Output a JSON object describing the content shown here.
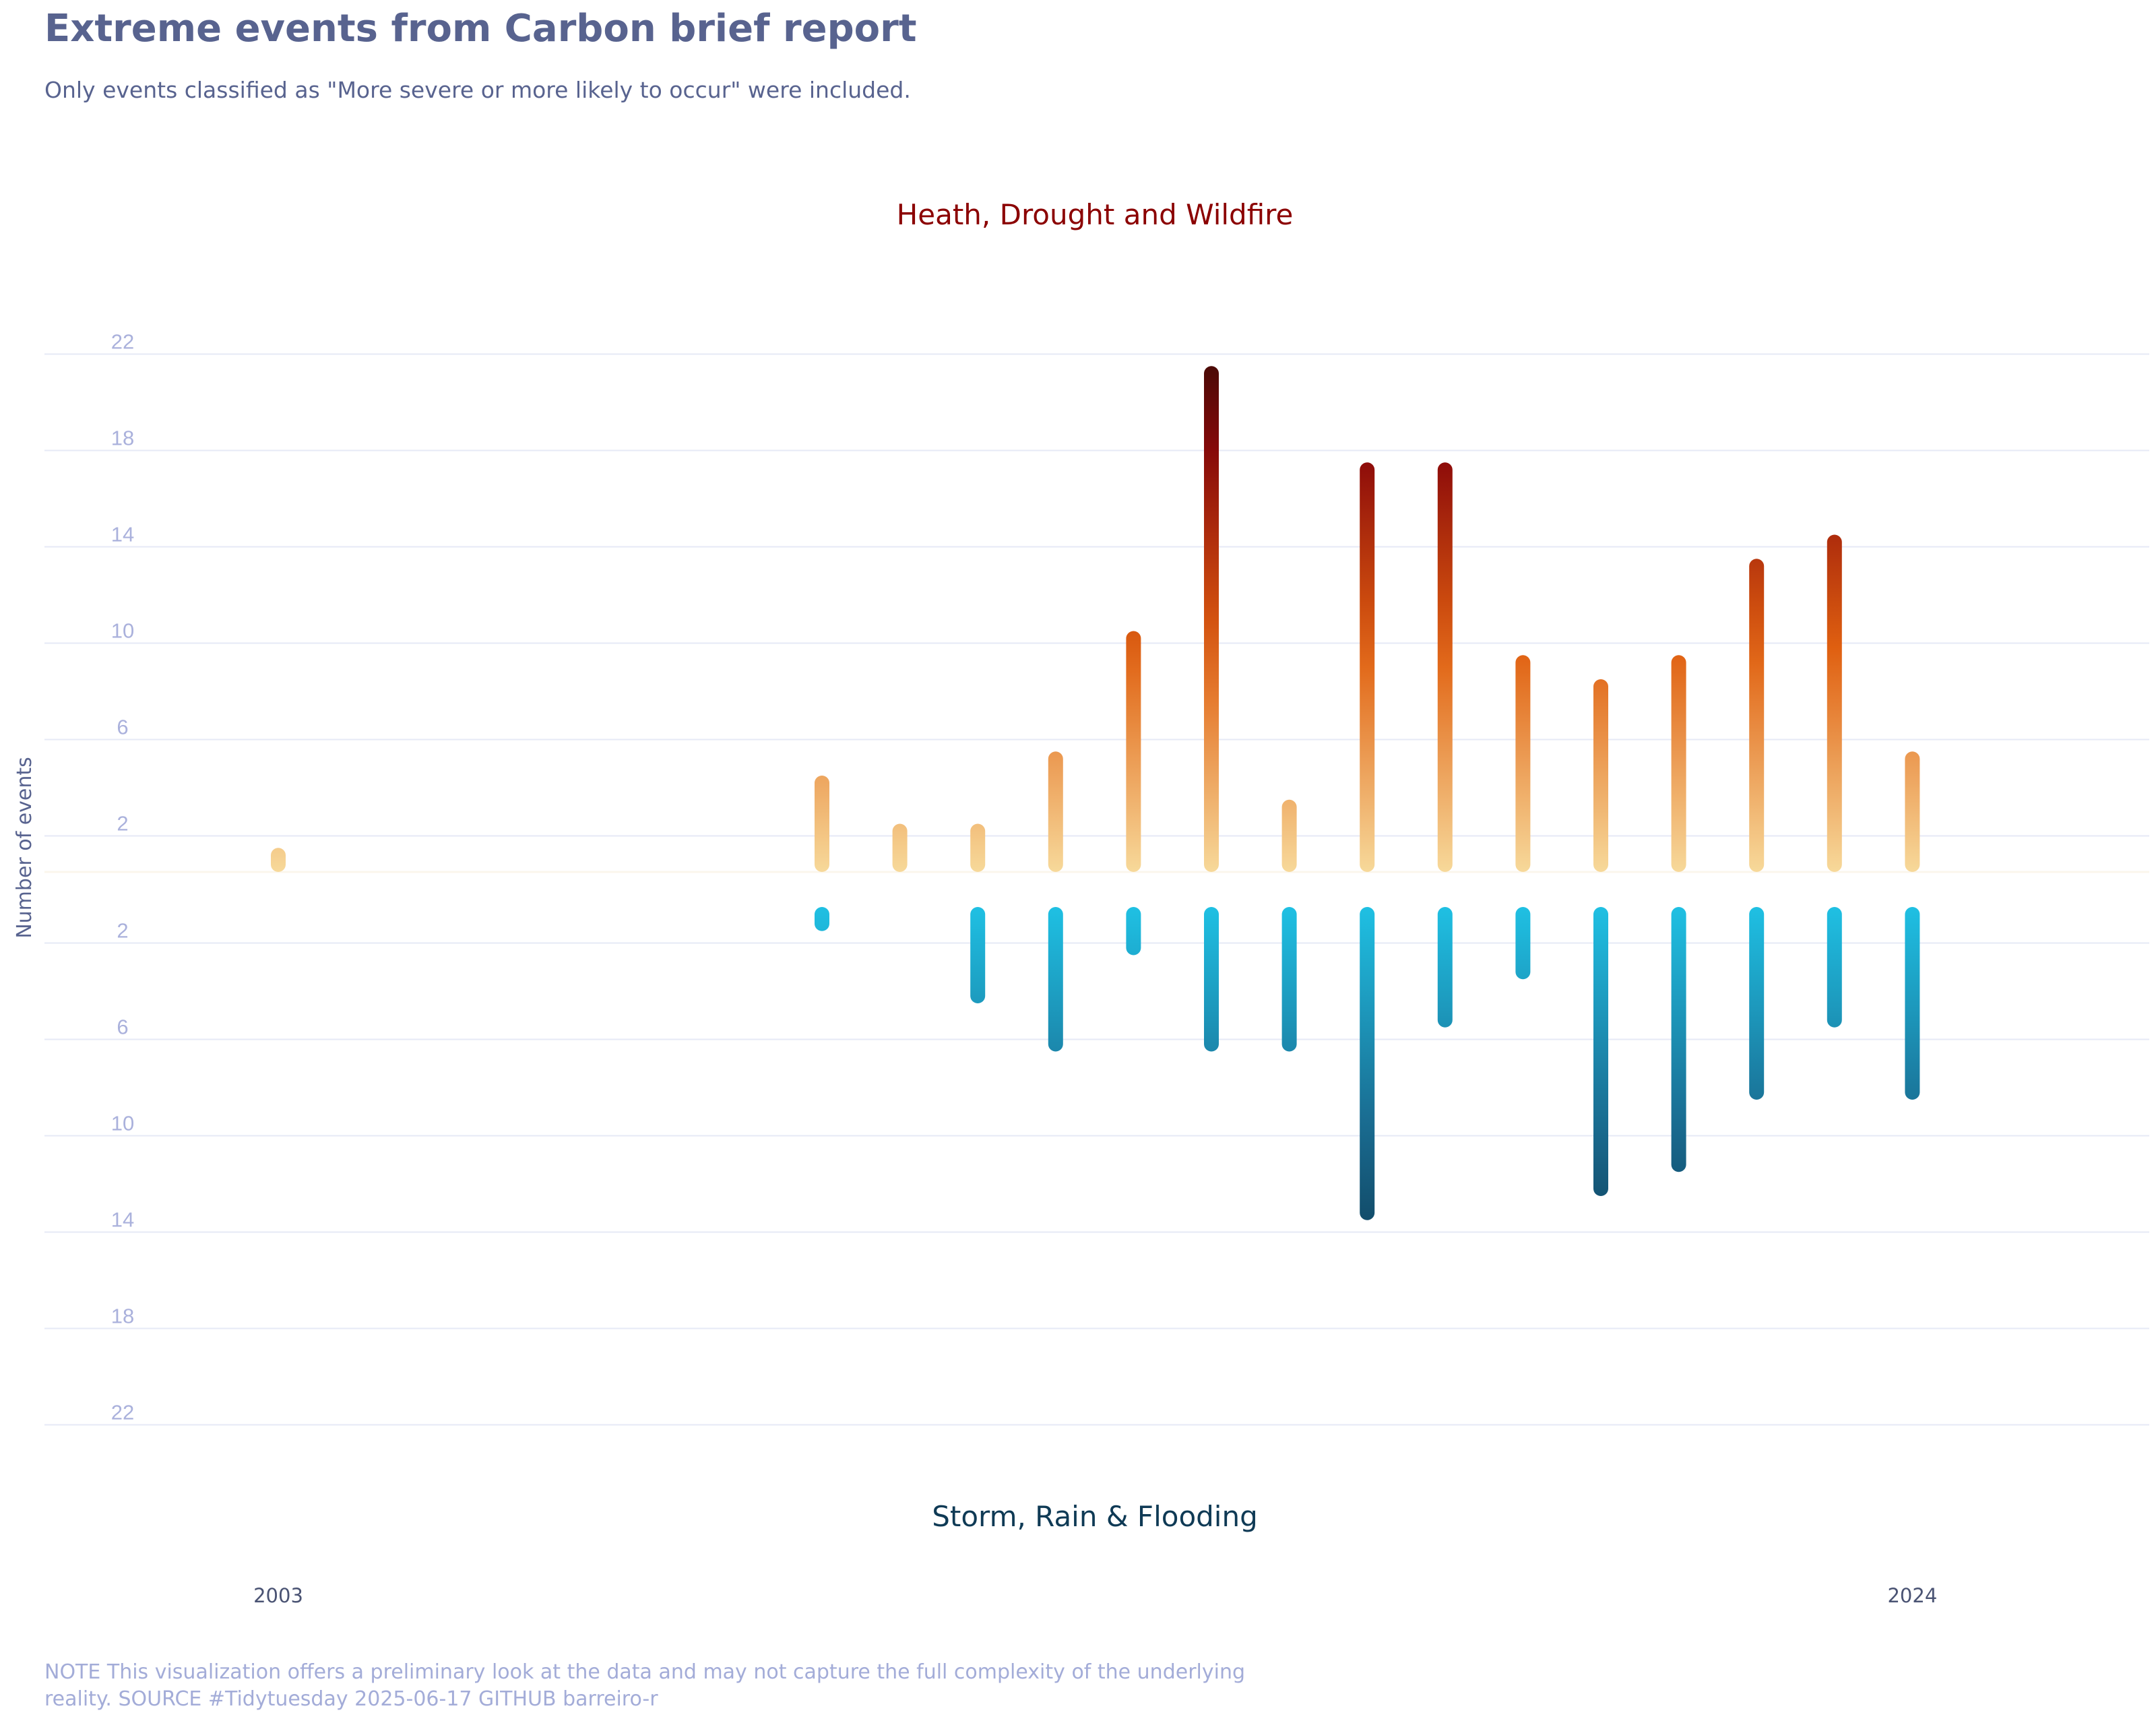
{
  "title": "Extreme events from Carbon brief report",
  "subtitle": "Only events classified as \"More severe or more likely to occur\" were included.",
  "caption": "NOTE This visualization offers a preliminary look at the data and may not capture the full complexity of the underlying reality. SOURCE #Tidytuesday 2025-06-17 GITHUB barreiro-r",
  "chart_data": {
    "type": "bar",
    "orientation": "diverging",
    "ylabel": "Number of events",
    "top_label": "Heath, Drought and Wildfire",
    "bottom_label": "Storm, Rain & Flooding",
    "x_tick_labels": [
      "2003",
      "2024"
    ],
    "y_ticks": [
      2,
      6,
      10,
      14,
      18,
      22
    ],
    "y_tick_labels": [
      "2",
      "6",
      "10",
      "14",
      "18",
      "22"
    ],
    "ylim": [
      -24,
      24
    ],
    "grid": true,
    "x": [
      2003,
      2010,
      2011,
      2012,
      2013,
      2014,
      2015,
      2016,
      2017,
      2018,
      2019,
      2020,
      2021,
      2022,
      2023,
      2024
    ],
    "series": [
      {
        "name": "Heath, Drought and Wildfire",
        "values": [
          1,
          4,
          2,
          2,
          5,
          10,
          21,
          3,
          17,
          17,
          9,
          8,
          9,
          13,
          14,
          5
        ]
      },
      {
        "name": "Storm, Rain & Flooding",
        "values": [
          0,
          1,
          0,
          4,
          6,
          2,
          6,
          6,
          13,
          5,
          3,
          12,
          11,
          8,
          5,
          8
        ]
      }
    ],
    "colors": {
      "heat_low": "#f7d99a",
      "heat_mid": "#e06010",
      "heat_high": "#8c0a0a",
      "heat_max": "#3a0a05",
      "storm_low": "#1fc0e3",
      "storm_mid": "#1a6d92",
      "storm_high": "#0d3a55",
      "top_label": "#8b0000",
      "bottom_label": "#0f3a55",
      "grid": "#e6e9f6",
      "title": "#58638f",
      "tick": "#aab1dc"
    }
  }
}
